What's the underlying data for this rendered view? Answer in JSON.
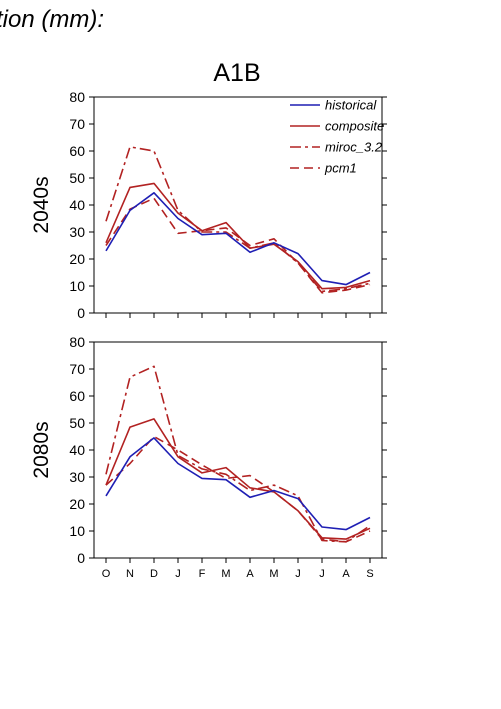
{
  "heading": "tion (mm):",
  "scenario": "A1B",
  "colors": {
    "historical": "#1f1fb4",
    "model": "#b22222"
  },
  "chart_data": [
    {
      "type": "line",
      "ylabel": "2040s",
      "ylim": [
        0,
        80
      ],
      "yticks": [
        0,
        10,
        20,
        30,
        40,
        50,
        60,
        70,
        80
      ],
      "categories": [
        "O",
        "N",
        "D",
        "J",
        "F",
        "M",
        "A",
        "M",
        "J",
        "J",
        "A",
        "S"
      ],
      "show_xtick_labels": false,
      "legend": "top-right",
      "series": [
        {
          "name": "historical",
          "style": "solid",
          "color": "#1f1fb4",
          "values": [
            23,
            38,
            44.5,
            35,
            29,
            29.5,
            22.5,
            26,
            22,
            12,
            10.5,
            15
          ]
        },
        {
          "name": "composite",
          "style": "solid",
          "color": "#b22222",
          "values": [
            26,
            46.5,
            48,
            37,
            30.5,
            33.5,
            24,
            25.5,
            19,
            9,
            9.5,
            12
          ]
        },
        {
          "name": "miroc_3.2",
          "style": "dashdot",
          "color": "#b22222",
          "values": [
            34,
            61.5,
            60,
            38,
            30,
            30,
            24,
            26,
            18.5,
            8,
            9,
            11
          ]
        },
        {
          "name": "pcm1",
          "style": "dashed",
          "color": "#b22222",
          "values": [
            25,
            38.5,
            42.5,
            29.5,
            30.5,
            31.5,
            25,
            27.5,
            18.5,
            7.5,
            8.5,
            10.5
          ]
        }
      ]
    },
    {
      "type": "line",
      "ylabel": "2080s",
      "ylim": [
        0,
        80
      ],
      "yticks": [
        0,
        10,
        20,
        30,
        40,
        50,
        60,
        70,
        80
      ],
      "categories": [
        "O",
        "N",
        "D",
        "J",
        "F",
        "M",
        "A",
        "M",
        "J",
        "J",
        "A",
        "S"
      ],
      "show_xtick_labels": true,
      "series": [
        {
          "name": "historical",
          "style": "solid",
          "color": "#1f1fb4",
          "values": [
            23,
            37.5,
            44.5,
            35,
            29.5,
            29,
            22.5,
            25,
            22,
            11.5,
            10.5,
            15
          ]
        },
        {
          "name": "composite",
          "style": "solid",
          "color": "#b22222",
          "values": [
            27,
            48.5,
            51.5,
            37.5,
            31.5,
            33.5,
            26,
            24.5,
            17.5,
            7.5,
            7,
            11
          ]
        },
        {
          "name": "miroc_3.2",
          "style": "dashdot",
          "color": "#b22222",
          "values": [
            31,
            67,
            71,
            38,
            33,
            31,
            25,
            27,
            23,
            6.5,
            6,
            12
          ]
        },
        {
          "name": "pcm1",
          "style": "dashed",
          "color": "#b22222",
          "values": [
            27,
            35,
            45,
            40,
            34.5,
            29.5,
            30.5,
            24.5,
            17.5,
            7,
            6,
            10
          ]
        }
      ]
    }
  ]
}
